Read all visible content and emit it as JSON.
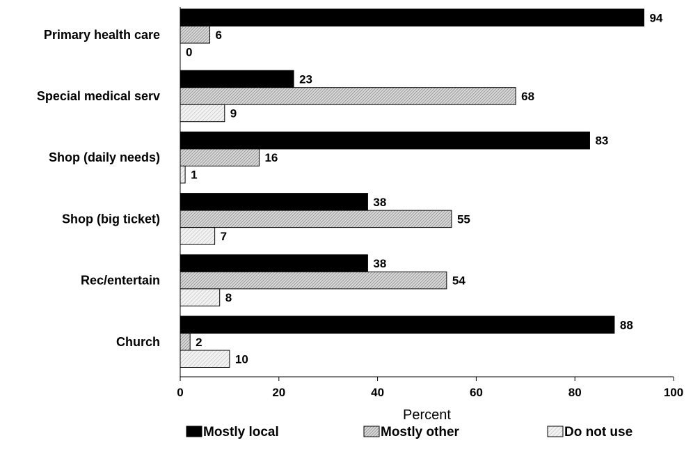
{
  "chart_data": {
    "type": "bar",
    "orientation": "horizontal",
    "categories": [
      "Primary health care",
      "Special medical serv",
      "Shop (daily needs)",
      "Shop (big ticket)",
      "Rec/entertain",
      "Church"
    ],
    "series": [
      {
        "name": "Mostly local",
        "values": [
          94,
          23,
          83,
          38,
          38,
          88
        ],
        "color": "#000000",
        "pattern": "solid"
      },
      {
        "name": "Mostly other",
        "values": [
          6,
          68,
          16,
          55,
          54,
          2
        ],
        "color": "#bfbfbf",
        "pattern": "dense-hatch"
      },
      {
        "name": "Do not use",
        "values": [
          0,
          9,
          1,
          7,
          8,
          10
        ],
        "color": "#e6e6e6",
        "pattern": "light-hatch"
      }
    ],
    "xlabel": "Percent",
    "ylabel": "",
    "xlim": [
      0,
      100
    ],
    "xticks": [
      "0",
      "20",
      "40",
      "60",
      "80",
      "100"
    ],
    "grid": false,
    "legend_position": "bottom",
    "data_labels": true
  }
}
